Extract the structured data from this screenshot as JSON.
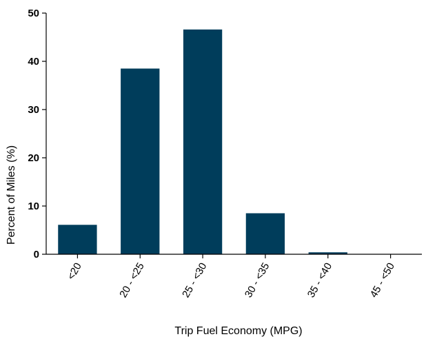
{
  "chart_data": {
    "type": "bar",
    "title": "",
    "xlabel": "Trip Fuel Economy (MPG)",
    "ylabel": "Percent of Miles (%)",
    "categories": [
      "<20",
      "20 - <25",
      "25 - <30",
      "30 - <35",
      "35 - <40",
      "45 - <50"
    ],
    "values": [
      6.1,
      38.5,
      46.6,
      8.5,
      0.4,
      0.0
    ],
    "ylim": [
      0,
      50
    ],
    "yticks": [
      0,
      10,
      20,
      30,
      40,
      50
    ],
    "grid": false,
    "legend": "none",
    "bar_color": "#003d5b"
  }
}
